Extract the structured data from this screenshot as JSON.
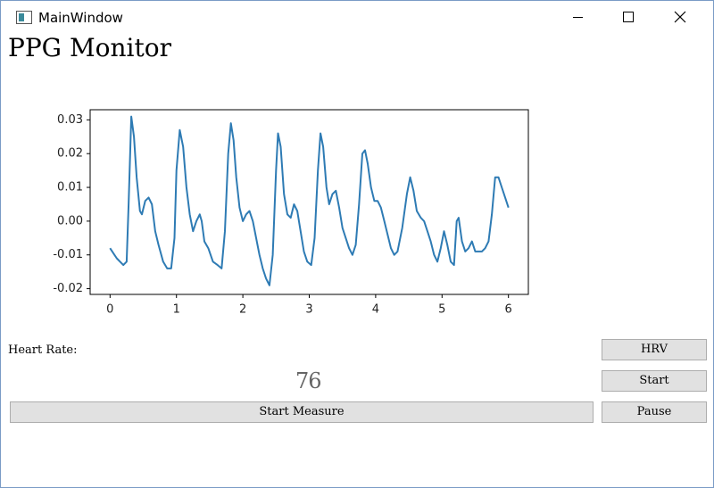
{
  "window_title": "MainWindow",
  "app_title": "PPG Monitor",
  "chart_data": {
    "type": "line",
    "x": [
      0,
      0.1,
      0.15,
      0.2,
      0.25,
      0.28,
      0.32,
      0.36,
      0.4,
      0.45,
      0.48,
      0.53,
      0.58,
      0.63,
      0.68,
      0.73,
      0.8,
      0.86,
      0.92,
      0.97,
      1.0,
      1.05,
      1.1,
      1.15,
      1.2,
      1.25,
      1.3,
      1.35,
      1.38,
      1.42,
      1.48,
      1.55,
      1.62,
      1.68,
      1.73,
      1.78,
      1.82,
      1.86,
      1.9,
      1.95,
      2.0,
      2.05,
      2.1,
      2.15,
      2.2,
      2.25,
      2.3,
      2.35,
      2.4,
      2.45,
      2.5,
      2.53,
      2.57,
      2.62,
      2.67,
      2.72,
      2.77,
      2.82,
      2.87,
      2.92,
      2.97,
      3.03,
      3.08,
      3.13,
      3.17,
      3.21,
      3.26,
      3.3,
      3.35,
      3.4,
      3.45,
      3.5,
      3.55,
      3.6,
      3.65,
      3.7,
      3.75,
      3.8,
      3.84,
      3.88,
      3.93,
      3.98,
      4.03,
      4.08,
      4.13,
      4.18,
      4.23,
      4.28,
      4.33,
      4.4,
      4.47,
      4.52,
      4.57,
      4.62,
      4.68,
      4.73,
      4.78,
      4.83,
      4.88,
      4.93,
      4.98,
      5.03,
      5.08,
      5.13,
      5.18,
      5.22,
      5.25,
      5.3,
      5.35,
      5.4,
      5.45,
      5.5,
      5.55,
      5.6,
      5.65,
      5.7,
      5.75,
      5.8,
      5.85,
      5.9,
      5.95,
      6.0
    ],
    "series": [
      {
        "color": "#2e7bb4",
        "values": [
          -0.008,
          -0.011,
          -0.012,
          -0.013,
          -0.012,
          0.005,
          0.031,
          0.025,
          0.013,
          0.003,
          0.002,
          0.006,
          0.007,
          0.005,
          -0.003,
          -0.007,
          -0.012,
          -0.014,
          -0.014,
          -0.005,
          0.015,
          0.027,
          0.022,
          0.01,
          0.002,
          -0.003,
          0.0,
          0.002,
          0.0,
          -0.006,
          -0.008,
          -0.012,
          -0.013,
          -0.014,
          -0.003,
          0.02,
          0.029,
          0.024,
          0.013,
          0.004,
          0.0,
          0.002,
          0.003,
          0.0,
          -0.005,
          -0.01,
          -0.014,
          -0.017,
          -0.019,
          -0.01,
          0.015,
          0.026,
          0.022,
          0.008,
          0.002,
          0.001,
          0.005,
          0.003,
          -0.003,
          -0.009,
          -0.012,
          -0.013,
          -0.005,
          0.015,
          0.026,
          0.022,
          0.01,
          0.005,
          0.008,
          0.009,
          0.004,
          -0.002,
          -0.005,
          -0.008,
          -0.01,
          -0.007,
          0.005,
          0.02,
          0.021,
          0.017,
          0.01,
          0.006,
          0.006,
          0.004,
          0.0,
          -0.004,
          -0.008,
          -0.01,
          -0.009,
          -0.002,
          0.008,
          0.013,
          0.009,
          0.003,
          0.001,
          0.0,
          -0.003,
          -0.006,
          -0.01,
          -0.012,
          -0.008,
          -0.003,
          -0.007,
          -0.012,
          -0.013,
          0.0,
          0.001,
          -0.006,
          -0.009,
          -0.008,
          -0.006,
          -0.009,
          -0.009,
          -0.009,
          -0.008,
          -0.006,
          0.002,
          0.013,
          0.013,
          0.01,
          0.007,
          0.004
        ]
      }
    ],
    "xlim": [
      -0.3,
      6.3
    ],
    "ylim": [
      -0.0217,
      0.033
    ],
    "xticks": [
      0,
      1,
      2,
      3,
      4,
      5,
      6
    ],
    "yticks": [
      -0.02,
      -0.01,
      {
        "value": 0,
        "label": "0.00"
      },
      0.01,
      0.02,
      0.03
    ]
  },
  "heart_rate_label": "Heart Rate:",
  "heart_rate_value": 76,
  "buttons": {
    "hrv": "HRV",
    "start": "Start",
    "pause": "Pause",
    "start_measure": "Start Measure"
  }
}
